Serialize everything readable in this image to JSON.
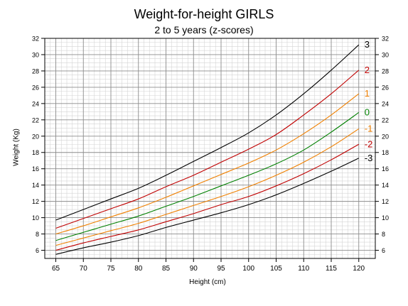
{
  "chart_data": {
    "type": "line",
    "title": "Weight-for-height GIRLS",
    "subtitle": "2 to 5 years (z-scores)",
    "xlabel": "Height (cm)",
    "ylabel": "Weight (Kg)",
    "xlim": [
      63,
      123
    ],
    "ylim": [
      5,
      32
    ],
    "x_ticks": [
      65,
      70,
      75,
      80,
      85,
      90,
      95,
      100,
      105,
      110,
      115,
      120
    ],
    "y_ticks": [
      6,
      8,
      10,
      12,
      14,
      16,
      18,
      20,
      22,
      24,
      26,
      28,
      30,
      32
    ],
    "grid": true,
    "legend": "curve labels at right end of each line",
    "x": [
      65,
      70,
      75,
      80,
      85,
      90,
      95,
      100,
      105,
      110,
      115,
      120
    ],
    "series": [
      {
        "name": "3",
        "color": "#000000",
        "values": [
          9.7,
          11.0,
          12.3,
          13.6,
          15.2,
          16.9,
          18.6,
          20.4,
          22.6,
          25.2,
          28.1,
          31.2
        ]
      },
      {
        "name": "2",
        "color": "#c00000",
        "values": [
          8.7,
          9.9,
          11.1,
          12.3,
          13.8,
          15.2,
          16.8,
          18.4,
          20.2,
          22.6,
          25.2,
          28.1
        ]
      },
      {
        "name": "1",
        "color": "#f08000",
        "values": [
          8.0,
          9.0,
          10.1,
          11.2,
          12.5,
          13.9,
          15.3,
          16.7,
          18.3,
          20.3,
          22.6,
          25.2
        ]
      },
      {
        "name": "0",
        "color": "#008000",
        "values": [
          7.2,
          8.2,
          9.2,
          10.2,
          11.4,
          12.6,
          13.9,
          15.2,
          16.6,
          18.3,
          20.5,
          22.9
        ]
      },
      {
        "name": "-1",
        "color": "#f08000",
        "values": [
          6.6,
          7.5,
          8.4,
          9.3,
          10.4,
          11.5,
          12.6,
          13.8,
          15.2,
          16.8,
          18.7,
          20.9
        ]
      },
      {
        "name": "-2",
        "color": "#c00000",
        "values": [
          6.0,
          6.9,
          7.7,
          8.5,
          9.5,
          10.5,
          11.6,
          12.6,
          13.9,
          15.4,
          17.1,
          19.0
        ]
      },
      {
        "name": "-3",
        "color": "#000000",
        "values": [
          5.5,
          6.3,
          7.0,
          7.8,
          8.8,
          9.7,
          10.6,
          11.6,
          12.8,
          14.2,
          15.7,
          17.3
        ]
      }
    ]
  }
}
